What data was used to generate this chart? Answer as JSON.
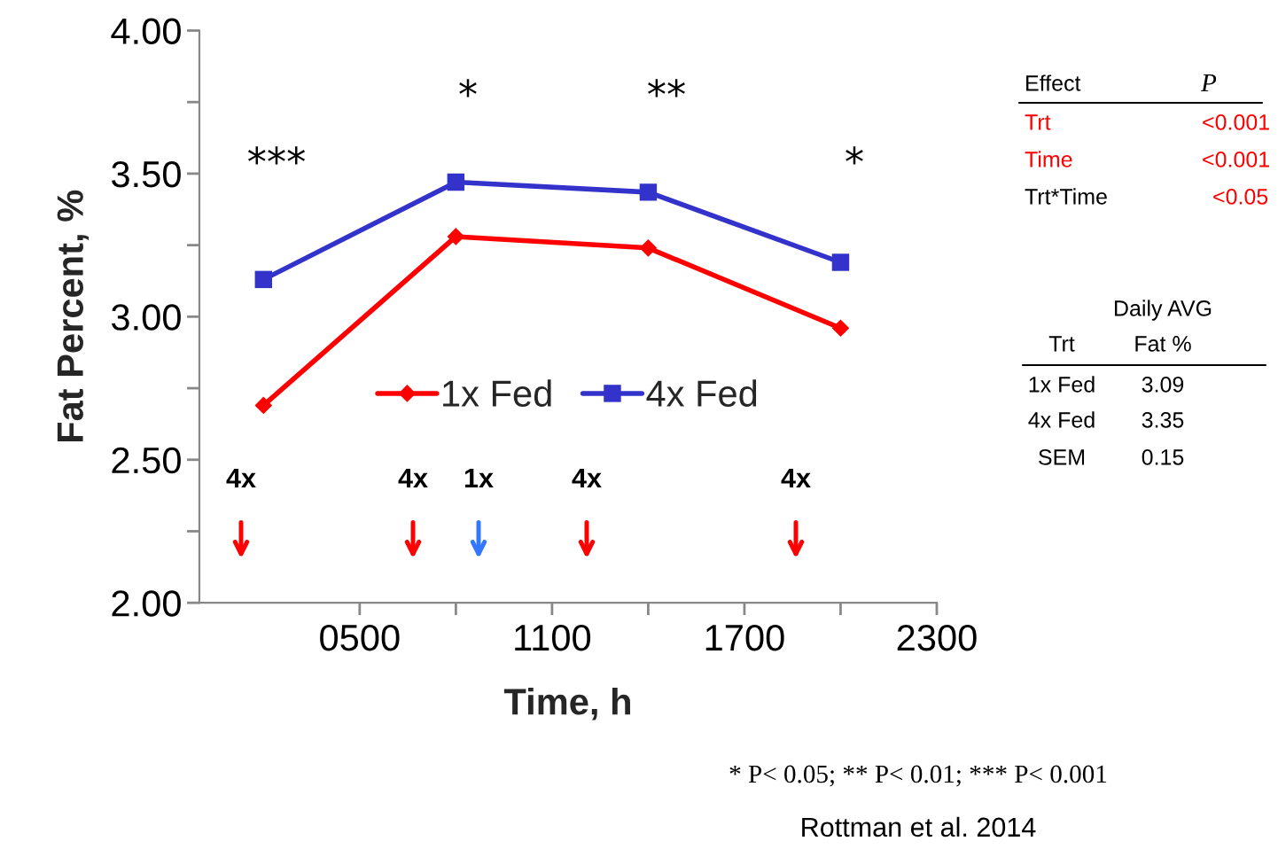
{
  "chart_data": {
    "type": "line",
    "xlabel": "Time, h",
    "ylabel": "Fat Percent, %",
    "x": [
      200,
      800,
      1400,
      2000
    ],
    "series": [
      {
        "name": "1x Fed",
        "color": "#ff0000",
        "marker": "diamond",
        "values": [
          2.69,
          3.28,
          3.24,
          2.96
        ]
      },
      {
        "name": "4x Fed",
        "color": "#3333cc",
        "marker": "square",
        "values": [
          3.13,
          3.47,
          3.435,
          3.19
        ]
      }
    ],
    "xlim": [
      0,
      2300
    ],
    "xticks": [
      {
        "value": 500,
        "label": "0500"
      },
      {
        "value": 800,
        "label": null
      },
      {
        "value": 1100,
        "label": "1100"
      },
      {
        "value": 1400,
        "label": null
      },
      {
        "value": 1700,
        "label": "1700"
      },
      {
        "value": 2000,
        "label": null
      },
      {
        "value": 2300,
        "label": "2300"
      }
    ],
    "ylim": [
      2.0,
      4.0
    ],
    "yticks": [
      {
        "value": 2.0,
        "label": "2.00"
      },
      {
        "value": 2.25,
        "label": null
      },
      {
        "value": 2.5,
        "label": "2.50"
      },
      {
        "value": 2.75,
        "label": null
      },
      {
        "value": 3.0,
        "label": "3.00"
      },
      {
        "value": 3.25,
        "label": null
      },
      {
        "value": 3.5,
        "label": "3.50"
      },
      {
        "value": 3.75,
        "label": null
      },
      {
        "value": 4.0,
        "label": "4.00"
      }
    ],
    "grid": false,
    "legend": "center",
    "line_style": "solid",
    "annotations": [
      "***",
      "*",
      "**",
      "*",
      "4x",
      "4x",
      "1x",
      "4x",
      "4x",
      "Effect",
      "P",
      "Trt",
      "<0.001",
      "Time",
      "<0.001",
      "Trt*Time",
      "<0.05",
      "Daily AVG",
      "Trt",
      "Fat %",
      "1x Fed",
      "3.09",
      "4x Fed",
      "3.35",
      "SEM",
      "0.15",
      "* P< 0.05; ** P< 0.01; *** P< 0.001",
      "Rottman et al. 2014"
    ]
  }
}
